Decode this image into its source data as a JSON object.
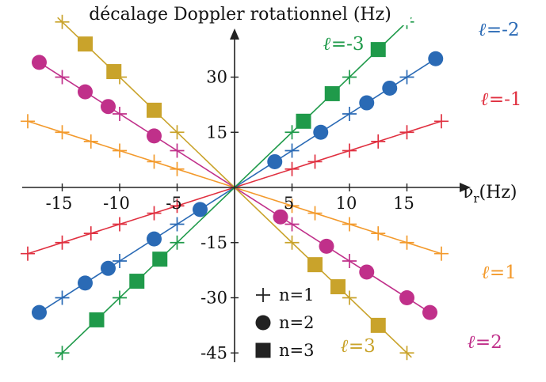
{
  "chart_data": {
    "type": "scatter",
    "title": "décalage Doppler rotationnel (Hz)",
    "xlabel": "ν",
    "xlabel_sub": "r",
    "xlabel_unit": "(Hz)",
    "xlim": [
      -18.3,
      18.3
    ],
    "ylim": [
      -47,
      50
    ],
    "x_ticks": [
      -15,
      -10,
      -5,
      5,
      10,
      15
    ],
    "y_ticks": [
      30,
      15,
      -15,
      -30,
      -45
    ],
    "x_tick_labels": [
      "-15",
      "-10",
      "-5",
      "5",
      "10",
      "15"
    ],
    "y_tick_labels": [
      "30",
      "15",
      "-15",
      "-30",
      "-45"
    ],
    "grid": false,
    "legend_position": "bottom-center",
    "legend": [
      {
        "marker": "plus",
        "label": "n=1"
      },
      {
        "marker": "circle",
        "label": "n=2"
      },
      {
        "marker": "square",
        "label": "n=3"
      }
    ],
    "series": [
      {
        "name": "ℓ=1",
        "ell_symbol": "ℓ",
        "ell_value": "=1",
        "slope": -1,
        "color": "#f39a2c",
        "line_x": [
          -18,
          18
        ],
        "label_pos": "bottom-right",
        "points": [
          {
            "n": 1,
            "x": [
              -18,
              -15,
              -12.5,
              -10,
              -7,
              -5,
              5,
              7,
              10,
              12.5,
              15,
              18
            ]
          }
        ]
      },
      {
        "name": "ℓ=-1",
        "ell_symbol": "ℓ",
        "ell_value": "=-1",
        "slope": 1,
        "color": "#e03040",
        "line_x": [
          -18,
          18
        ],
        "label_pos": "top-right",
        "points": [
          {
            "n": 1,
            "x": [
              -18,
              -15,
              -12.5,
              -10,
              -7,
              -5,
              5,
              7,
              10,
              12.5,
              15,
              18
            ]
          }
        ]
      },
      {
        "name": "ℓ=2",
        "ell_symbol": "ℓ",
        "ell_value": "=2",
        "slope": -2,
        "color": "#c0308a",
        "line_x": [
          -17.4,
          17.4
        ],
        "label_pos": "bottom-right",
        "points": [
          {
            "n": 1,
            "x": [
              -15,
              -10,
              -5,
              5,
              10,
              15
            ]
          },
          {
            "n": 2,
            "x": [
              -17,
              -13,
              -11,
              -7,
              4,
              8,
              11.5,
              15,
              17
            ]
          }
        ]
      },
      {
        "name": "ℓ=-2",
        "ell_symbol": "ℓ",
        "ell_value": "=-2",
        "slope": 2,
        "color": "#2a6ab5",
        "line_x": [
          -17.4,
          17.4
        ],
        "label_pos": "top-right",
        "points": [
          {
            "n": 1,
            "x": [
              -15,
              -10,
              -5,
              5,
              10,
              15
            ]
          },
          {
            "n": 2,
            "x": [
              -17,
              -13,
              -11,
              -7,
              -3,
              3.5,
              7.5,
              11.5,
              13.5,
              17.5
            ]
          }
        ]
      },
      {
        "name": "ℓ=3",
        "ell_symbol": "ℓ",
        "ell_value": "=3",
        "slope": -3,
        "color": "#c9a32b",
        "line_x": [
          -15.4,
          15.4
        ],
        "label_pos": "bottom-right",
        "points": [
          {
            "n": 1,
            "x": [
              -15,
              -10,
              -5,
              5,
              10,
              15
            ]
          },
          {
            "n": 3,
            "x": [
              -13,
              -10.5,
              -7,
              7,
              9,
              12.5
            ]
          }
        ]
      },
      {
        "name": "ℓ=-3",
        "ell_symbol": "ℓ",
        "ell_value": "=-3",
        "slope": 3,
        "color": "#1f9a4a",
        "line_x": [
          -15.4,
          15.4
        ],
        "label_pos": "top-right",
        "points": [
          {
            "n": 1,
            "x": [
              -15,
              -10,
              -5,
              5,
              10,
              15
            ]
          },
          {
            "n": 3,
            "x": [
              -12,
              -8.5,
              -6.5,
              6,
              8.5,
              12.5
            ]
          }
        ]
      }
    ]
  }
}
